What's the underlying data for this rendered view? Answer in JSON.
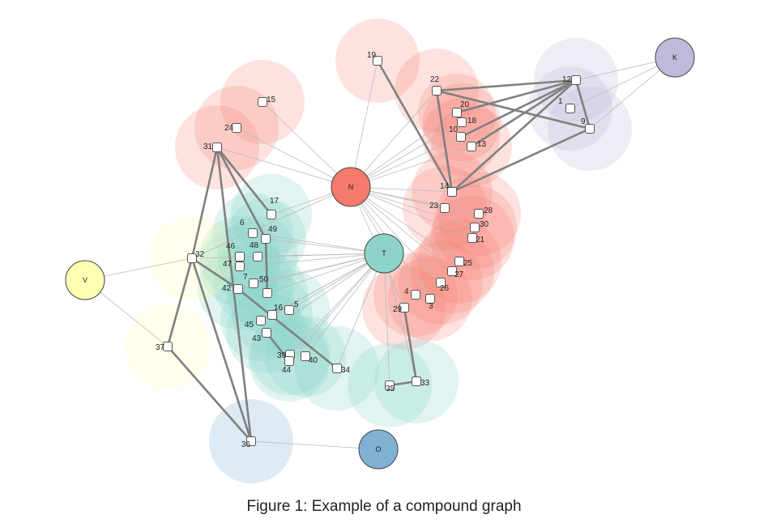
{
  "caption": "Figure 1: Example of a compound graph",
  "colors": {
    "N": "#f47a6c",
    "T": "#8dd3c7",
    "K": "#bebada",
    "V": "#ffffb3",
    "O": "#80b1d3",
    "node_fill": "#ffffff",
    "node_stroke": "#555555",
    "edge_thin": "#bbbbbb",
    "edge_thick": "#808080"
  },
  "hubs": [
    {
      "id": "N",
      "label": "N"
    },
    {
      "id": "T",
      "label": "T"
    },
    {
      "id": "K",
      "label": "K"
    },
    {
      "id": "V",
      "label": "V"
    },
    {
      "id": "O",
      "label": "O"
    }
  ],
  "nodes": [
    {
      "id": "1",
      "label": "1",
      "group": "K"
    },
    {
      "id": "3",
      "label": "3",
      "group": "N"
    },
    {
      "id": "4",
      "label": "4",
      "group": "N"
    },
    {
      "id": "5",
      "label": "5",
      "group": "T"
    },
    {
      "id": "6",
      "label": "6",
      "group": "T"
    },
    {
      "id": "7",
      "label": "7",
      "group": "T"
    },
    {
      "id": "9",
      "label": "9",
      "group": "K"
    },
    {
      "id": "10",
      "label": "10",
      "group": "N"
    },
    {
      "id": "12",
      "label": "12",
      "group": "K"
    },
    {
      "id": "13",
      "label": "13",
      "group": "N"
    },
    {
      "id": "14",
      "label": "14",
      "group": "N"
    },
    {
      "id": "15",
      "label": "15",
      "group": "N"
    },
    {
      "id": "16",
      "label": "16",
      "group": "T"
    },
    {
      "id": "17",
      "label": "17",
      "group": "T"
    },
    {
      "id": "18",
      "label": "18",
      "group": "N"
    },
    {
      "id": "19",
      "label": "19",
      "group": "N"
    },
    {
      "id": "20",
      "label": "20",
      "group": "N"
    },
    {
      "id": "21",
      "label": "21",
      "group": "N"
    },
    {
      "id": "22",
      "label": "22",
      "group": "N"
    },
    {
      "id": "23",
      "label": "23",
      "group": "N"
    },
    {
      "id": "24",
      "label": "24",
      "group": "N"
    },
    {
      "id": "25",
      "label": "25",
      "group": "N"
    },
    {
      "id": "26",
      "label": "26",
      "group": "N"
    },
    {
      "id": "27",
      "label": "27",
      "group": "N"
    },
    {
      "id": "28",
      "label": "28",
      "group": "N"
    },
    {
      "id": "29",
      "label": "29",
      "group": "N"
    },
    {
      "id": "30",
      "label": "30",
      "group": "N"
    },
    {
      "id": "31",
      "label": "31",
      "group": "N"
    },
    {
      "id": "32",
      "label": "32",
      "group": "V"
    },
    {
      "id": "33",
      "label": "33",
      "group": "T"
    },
    {
      "id": "34",
      "label": "34",
      "group": "T"
    },
    {
      "id": "35",
      "label": "35",
      "group": "T"
    },
    {
      "id": "36",
      "label": "36",
      "group": "O"
    },
    {
      "id": "37",
      "label": "37",
      "group": "V"
    },
    {
      "id": "39",
      "label": "39",
      "group": "T"
    },
    {
      "id": "40",
      "label": "40",
      "group": "T"
    },
    {
      "id": "42",
      "label": "42",
      "group": "T"
    },
    {
      "id": "43",
      "label": "43",
      "group": "T"
    },
    {
      "id": "44",
      "label": "44",
      "group": "T"
    },
    {
      "id": "45",
      "label": "45",
      "group": "T"
    },
    {
      "id": "46",
      "label": "46",
      "group": "T"
    },
    {
      "id": "47",
      "label": "47",
      "group": "T"
    },
    {
      "id": "48",
      "label": "48",
      "group": "T"
    },
    {
      "id": "49",
      "label": "49",
      "group": "T"
    },
    {
      "id": "50",
      "label": "50",
      "group": "T"
    }
  ],
  "edges_thick": [
    [
      "19",
      "14"
    ],
    [
      "22",
      "14"
    ],
    [
      "22",
      "9"
    ],
    [
      "22",
      "12"
    ],
    [
      "20",
      "12"
    ],
    [
      "10",
      "12"
    ],
    [
      "13",
      "12"
    ],
    [
      "14",
      "12"
    ],
    [
      "14",
      "9"
    ],
    [
      "12",
      "9"
    ],
    [
      "31",
      "32"
    ],
    [
      "31",
      "36"
    ],
    [
      "31",
      "17"
    ],
    [
      "31",
      "49"
    ],
    [
      "49",
      "50"
    ],
    [
      "32",
      "36"
    ],
    [
      "32",
      "37"
    ],
    [
      "37",
      "36"
    ],
    [
      "32",
      "42"
    ],
    [
      "42",
      "34"
    ],
    [
      "29",
      "33"
    ],
    [
      "33",
      "35"
    ],
    [
      "43",
      "44"
    ]
  ],
  "edges_thin": [
    [
      "N",
      "19"
    ],
    [
      "N",
      "22"
    ],
    [
      "N",
      "20"
    ],
    [
      "N",
      "18"
    ],
    [
      "N",
      "10"
    ],
    [
      "N",
      "13"
    ],
    [
      "N",
      "14"
    ],
    [
      "N",
      "23"
    ],
    [
      "N",
      "28"
    ],
    [
      "N",
      "30"
    ],
    [
      "N",
      "21"
    ],
    [
      "N",
      "25"
    ],
    [
      "N",
      "27"
    ],
    [
      "N",
      "26"
    ],
    [
      "N",
      "4"
    ],
    [
      "N",
      "3"
    ],
    [
      "N",
      "29"
    ],
    [
      "N",
      "31"
    ],
    [
      "N",
      "24"
    ],
    [
      "N",
      "15"
    ],
    [
      "N",
      "17"
    ],
    [
      "N",
      "32"
    ],
    [
      "T",
      "6"
    ],
    [
      "T",
      "49"
    ],
    [
      "T",
      "46"
    ],
    [
      "T",
      "48"
    ],
    [
      "T",
      "47"
    ],
    [
      "T",
      "7"
    ],
    [
      "T",
      "50"
    ],
    [
      "T",
      "42"
    ],
    [
      "T",
      "16"
    ],
    [
      "T",
      "5"
    ],
    [
      "T",
      "45"
    ],
    [
      "T",
      "43"
    ],
    [
      "T",
      "39"
    ],
    [
      "T",
      "40"
    ],
    [
      "T",
      "44"
    ],
    [
      "T",
      "34"
    ],
    [
      "T",
      "35"
    ],
    [
      "T",
      "33"
    ],
    [
      "T",
      "32"
    ],
    [
      "K",
      "12"
    ],
    [
      "K",
      "1"
    ],
    [
      "K",
      "9"
    ],
    [
      "V",
      "32"
    ],
    [
      "V",
      "37"
    ],
    [
      "O",
      "36"
    ]
  ]
}
